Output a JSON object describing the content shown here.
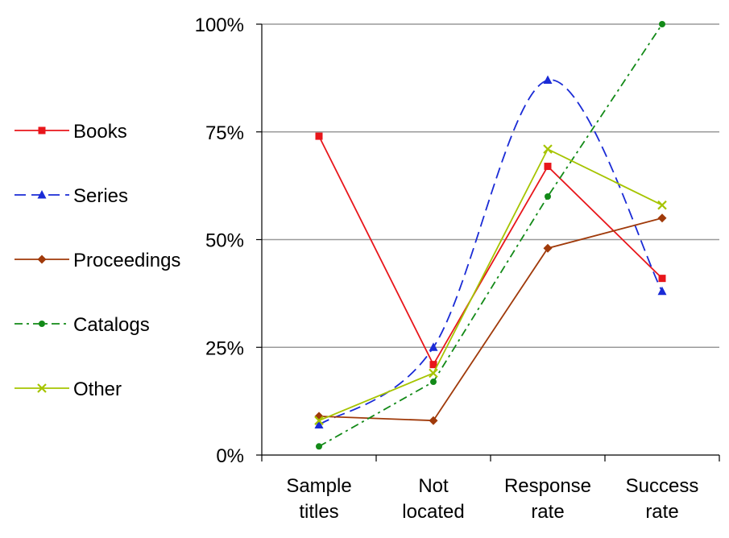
{
  "chart_data": {
    "type": "line",
    "categories": [
      [
        "Sample",
        "titles"
      ],
      [
        "Not",
        "located"
      ],
      [
        "Response",
        "rate"
      ],
      [
        "Success",
        "rate"
      ]
    ],
    "ylim": [
      0,
      100
    ],
    "yticks": [
      0,
      25,
      50,
      75,
      100
    ],
    "ytick_labels": [
      "0%",
      "25%",
      "50%",
      "75%",
      "100%"
    ],
    "grid": true,
    "legend_position": "left",
    "series": [
      {
        "name": "Books",
        "values": [
          74,
          21,
          67,
          41
        ],
        "color": "#e8161b",
        "dash": "solid",
        "marker": "square",
        "smooth": false
      },
      {
        "name": "Series",
        "values": [
          7,
          25,
          87,
          38
        ],
        "color": "#1a2bd6",
        "dash": "long-dash",
        "marker": "triangle",
        "smooth": true
      },
      {
        "name": "Proceedings",
        "values": [
          9,
          8,
          48,
          55
        ],
        "color": "#a03a0a",
        "dash": "solid",
        "marker": "diamond",
        "smooth": false
      },
      {
        "name": "Catalogs",
        "values": [
          2,
          17,
          60,
          100
        ],
        "color": "#138a18",
        "dash": "dash-dot",
        "marker": "circle",
        "smooth": false
      },
      {
        "name": "Other",
        "values": [
          8,
          19,
          71,
          58
        ],
        "color": "#a6c400",
        "dash": "solid",
        "marker": "x",
        "smooth": false
      }
    ]
  }
}
